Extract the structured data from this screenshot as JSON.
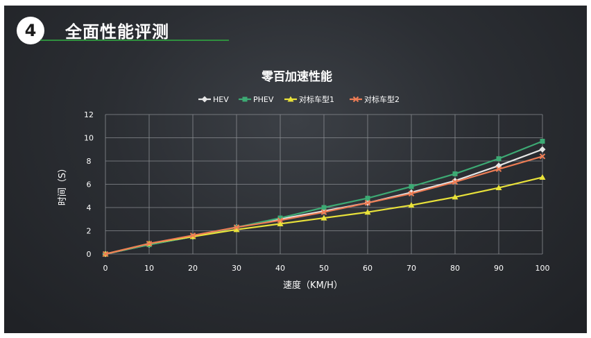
{
  "slide": {
    "number": "4",
    "heading": "全面性能评测"
  },
  "colors": {
    "accent_line": "#2f8f3e",
    "grid": "#8a8d92",
    "text": "#ffffff"
  },
  "chart_data": {
    "type": "line",
    "title": "零百加速性能",
    "xlabel": "速度（KM/H）",
    "ylabel": "时间（S）",
    "x": [
      0,
      10,
      20,
      30,
      40,
      50,
      60,
      70,
      80,
      90,
      100
    ],
    "xlim": [
      0,
      100
    ],
    "ylim": [
      0,
      12
    ],
    "yticks": [
      0,
      2,
      4,
      6,
      8,
      10,
      12
    ],
    "grid": true,
    "legend_position": "top",
    "series": [
      {
        "name": "HEV",
        "color": "#e6e6e6",
        "marker": "diamond",
        "values": [
          0,
          0.8,
          1.5,
          2.3,
          3.0,
          3.7,
          4.4,
          5.3,
          6.3,
          7.6,
          9.0
        ]
      },
      {
        "name": "PHEV",
        "color": "#3daa74",
        "marker": "square",
        "values": [
          0,
          0.8,
          1.5,
          2.3,
          3.1,
          4.0,
          4.8,
          5.8,
          6.9,
          8.2,
          9.7
        ]
      },
      {
        "name": "对标车型1",
        "color": "#e9e23a",
        "marker": "triangle",
        "values": [
          0,
          0.9,
          1.5,
          2.1,
          2.6,
          3.1,
          3.6,
          4.2,
          4.9,
          5.7,
          6.6
        ]
      },
      {
        "name": "对标车型2",
        "color": "#ee7d55",
        "marker": "cross",
        "values": [
          0,
          0.9,
          1.6,
          2.3,
          2.9,
          3.6,
          4.4,
          5.2,
          6.2,
          7.3,
          8.4
        ]
      }
    ]
  }
}
